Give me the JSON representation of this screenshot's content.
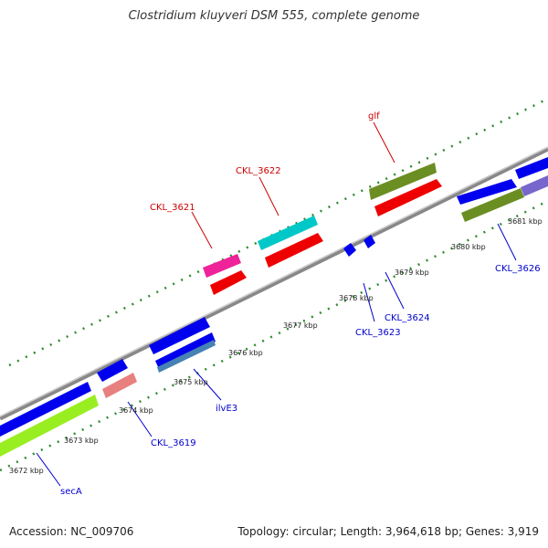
{
  "title": "Clostridium kluyveri DSM 555, complete genome",
  "footer": {
    "accession": "Accession: NC_009706",
    "topology": "Topology: circular; Length: 3,964,618 bp; Genes: 3,919"
  },
  "ticks": [
    "3672 kbp",
    "3673 kbp",
    "3674 kbp",
    "3675 kbp",
    "3676 kbp",
    "3677 kbp",
    "3678 kbp",
    "3679 kbp",
    "3680 kbp",
    "3681 kbp"
  ],
  "gene_labels": {
    "glf": "glf",
    "ckl3622": "CKL_3622",
    "ckl3621": "CKL_3621",
    "ckl3626": "CKL_3626",
    "ckl3624": "CKL_3624",
    "ckl3623": "CKL_3623",
    "ilve3": "ilvE3",
    "ckl3619": "CKL_3619",
    "seca": "secA"
  },
  "colors": {
    "blue": "#0000ee",
    "red": "#ee0000",
    "cyan": "#00c8c8",
    "magenta": "#ee2299",
    "olive": "#6b8e23",
    "lime": "#99ee22",
    "pink": "#e88080",
    "purple": "#7766cc",
    "steel": "#4682b4",
    "dots": "#2e8b2e",
    "label_red": "#cc0000",
    "label_blue": "#0000cc"
  }
}
